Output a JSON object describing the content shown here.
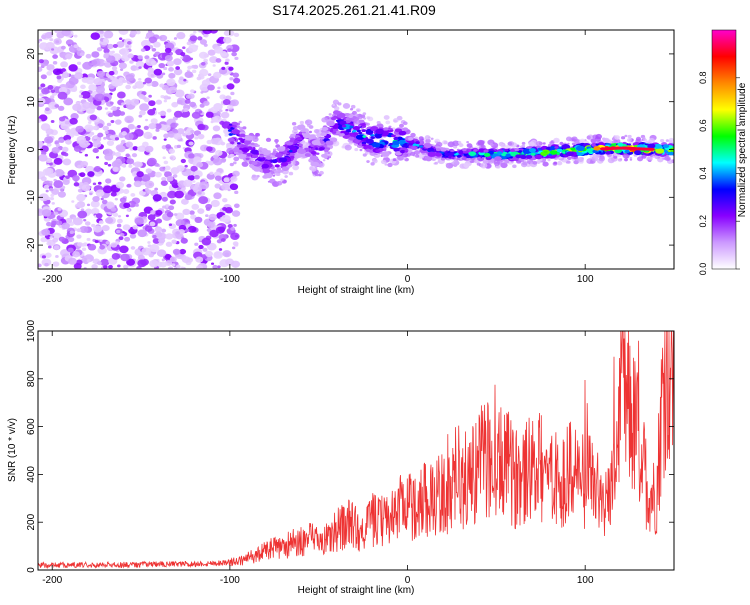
{
  "title": "S174.2025.261.21.41.R09",
  "chart_data": [
    {
      "type": "heatmap",
      "xlabel": "Height of straight line (km)",
      "ylabel": "Frequency (Hz)",
      "xlim": [
        -208,
        150
      ],
      "ylim": [
        -25,
        25
      ],
      "xticks": [
        -200,
        -100,
        0,
        100
      ],
      "yticks": [
        -20,
        -10,
        0,
        10,
        20
      ],
      "colorbar": {
        "label": "Normalized spectral amplitude",
        "range": [
          0.0,
          1.0
        ],
        "ticks": [
          "0.0",
          "0.2",
          "0.4",
          "0.6",
          "0.8"
        ],
        "tick_values": [
          0.0,
          0.2,
          0.4,
          0.6,
          0.8
        ],
        "colors": [
          "#ffffff",
          "#cc99ff",
          "#8800ff",
          "#0000ff",
          "#00ffff",
          "#00ff00",
          "#ffff00",
          "#ff8800",
          "#ff0000",
          "#ff00cc"
        ]
      },
      "ridge": {
        "description": "Signal concentrates near 0 Hz with high amplitude at heights above -100 km; diffuse noise below -100 km.",
        "points": [
          {
            "h": -100,
            "f": 4,
            "amp": 0.4
          },
          {
            "h": -90,
            "f": 0,
            "amp": 0.3
          },
          {
            "h": -80,
            "f": -3,
            "amp": 0.25
          },
          {
            "h": -70,
            "f": -2,
            "amp": 0.35
          },
          {
            "h": -60,
            "f": 2,
            "amp": 0.3
          },
          {
            "h": -50,
            "f": -1,
            "amp": 0.3
          },
          {
            "h": -40,
            "f": 6,
            "amp": 0.35
          },
          {
            "h": -30,
            "f": 4,
            "amp": 0.4
          },
          {
            "h": -20,
            "f": 2,
            "amp": 0.5
          },
          {
            "h": 0,
            "f": 1.5,
            "amp": 0.45
          },
          {
            "h": 20,
            "f": -1,
            "amp": 0.4
          },
          {
            "h": 40,
            "f": -1,
            "amp": 0.5
          },
          {
            "h": 60,
            "f": -1,
            "amp": 0.6
          },
          {
            "h": 80,
            "f": -0.5,
            "amp": 0.7
          },
          {
            "h": 100,
            "f": 0,
            "amp": 0.75
          },
          {
            "h": 120,
            "f": 0.3,
            "amp": 0.95
          },
          {
            "h": 140,
            "f": 0,
            "amp": 0.85
          }
        ]
      }
    },
    {
      "type": "line",
      "xlabel": "Height of straight line (km)",
      "ylabel": "SNR (10 * v/v)",
      "xlim": [
        -208,
        150
      ],
      "ylim": [
        0,
        1000
      ],
      "xticks": [
        -200,
        -100,
        0,
        100
      ],
      "yticks": [
        0,
        200,
        400,
        600,
        800,
        1000
      ],
      "color": "#ee3333",
      "series": [
        {
          "name": "SNR",
          "x": [
            -208,
            -200,
            -180,
            -160,
            -140,
            -120,
            -105,
            -95,
            -90,
            -85,
            -80,
            -75,
            -70,
            -65,
            -60,
            -55,
            -50,
            -45,
            -40,
            -35,
            -30,
            -25,
            -20,
            -15,
            -10,
            -5,
            0,
            5,
            10,
            15,
            20,
            25,
            30,
            35,
            40,
            45,
            50,
            55,
            60,
            65,
            70,
            75,
            80,
            85,
            90,
            95,
            100,
            105,
            110,
            115,
            120,
            125,
            130,
            135,
            140,
            145,
            150
          ],
          "y": [
            20,
            20,
            22,
            22,
            24,
            25,
            30,
            35,
            50,
            60,
            80,
            90,
            100,
            110,
            120,
            130,
            120,
            130,
            140,
            200,
            180,
            160,
            210,
            200,
            230,
            250,
            260,
            280,
            300,
            300,
            320,
            330,
            350,
            400,
            430,
            480,
            420,
            460,
            380,
            400,
            420,
            430,
            400,
            380,
            400,
            420,
            360,
            380,
            250,
            350,
            700,
            650,
            550,
            350,
            300,
            900,
            850
          ]
        }
      ]
    }
  ]
}
